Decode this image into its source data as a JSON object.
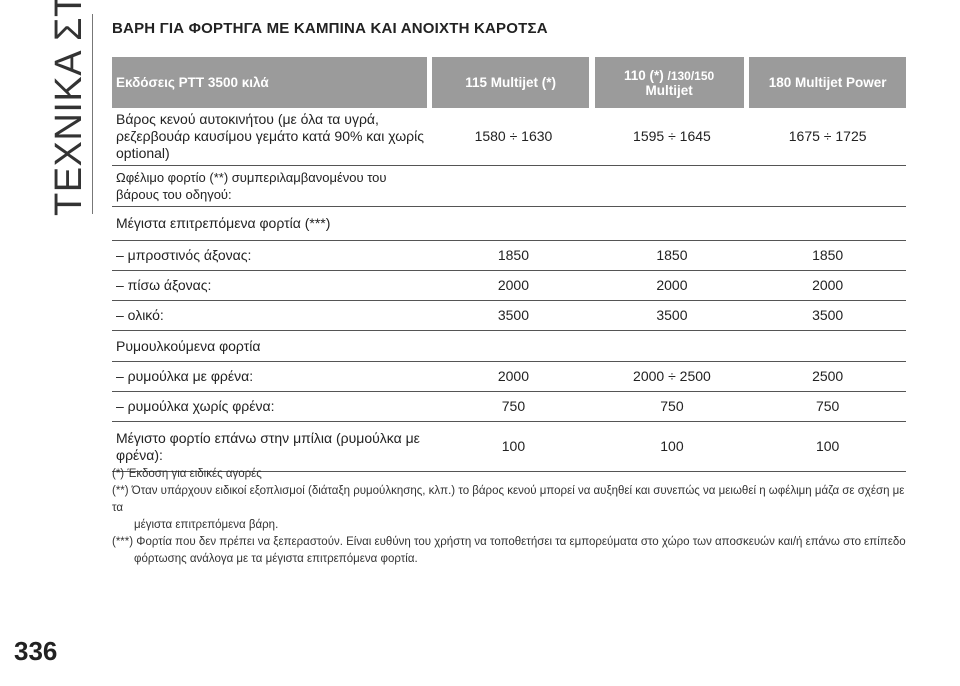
{
  "side_title": "ΤΕΧΝΙΚΑ ΣΤΟΙΧΕΙΑ",
  "page_number": "336",
  "heading": "ΒΑΡΗ ΓΙΑ ΦΟΡΤΗΓΑ ΜΕ ΚΑΜΠΙΝΑ ΚΑΙ ΑΝΟΙΧΤΗ ΚΑΡΟΤΣΑ",
  "table": {
    "header": {
      "col0": "Εκδόσεις PTT 3500 κιλά",
      "col1": "115 Multijet (*)",
      "col2_line1": "110 (*) ",
      "col2_small": "/130/150",
      "col2_line2": "Multijet",
      "col3": "180 Multijet Power"
    },
    "rows": [
      {
        "label": "Βάρος κενού αυτοκινήτου (με όλα τα υγρά, ρεζερβουάρ καυσίμου γεμάτο κατά 90% και χωρίς optional)",
        "v1": "1580 ÷ 1630",
        "v2": "1595 ÷ 1645",
        "v3": "1675 ÷ 1725"
      },
      {
        "label": "Ωφέλιμο φορτίο (**) συμπεριλαμβανομένου του βάρους του οδηγού:",
        "v1": "",
        "v2": "",
        "v3": ""
      },
      {
        "label": "Μέγιστα επιτρεπόμενα φορτία (***)",
        "v1": "",
        "v2": "",
        "v3": ""
      },
      {
        "label": "– μπροστινός άξονας:",
        "v1": "1850",
        "v2": "1850",
        "v3": "1850"
      },
      {
        "label": "– πίσω άξονας:",
        "v1": "2000",
        "v2": "2000",
        "v3": "2000"
      },
      {
        "label": "– ολικό:",
        "v1": "3500",
        "v2": "3500",
        "v3": "3500"
      },
      {
        "label": "Ρυμουλκούμενα φορτία",
        "v1": "",
        "v2": "",
        "v3": ""
      },
      {
        "label": "– ρυμούλκα με φρένα:",
        "v1": "2000",
        "v2": "2000 ÷ 2500",
        "v3": "2500"
      },
      {
        "label": "– ρυμούλκα χωρίς φρένα:",
        "v1": "750",
        "v2": "750",
        "v3": "750"
      },
      {
        "label": "Μέγιστο φορτίο επάνω στην μπίλια (ρυμούλκα με φρένα):",
        "v1": "100",
        "v2": "100",
        "v3": "100"
      }
    ]
  },
  "notes": {
    "n1": "(*) Έκδοση για ειδικές αγορές",
    "n2a": "(**) Όταν υπάρχουν ειδικοί εξοπλισμοί (διάταξη ρυμούλκησης, κλπ.) το βάρος κενού μπορεί να αυξηθεί και συνεπώς να μειωθεί η ωφέλιμη μάζα σε σχέση με τα",
    "n2b": "μέγιστα επιτρεπόμενα βάρη.",
    "n3a": "(***) Φορτία που δεν πρέπει να ξεπεραστούν. Είναι ευθύνη του χρήστη να τοποθετήσει τα εμπορεύματα στο χώρο των αποσκευών και/ή επάνω στο επίπεδο",
    "n3b": "φόρτωσης ανάλογα με τα μέγιστα επιτρεπόμενα φορτία."
  }
}
